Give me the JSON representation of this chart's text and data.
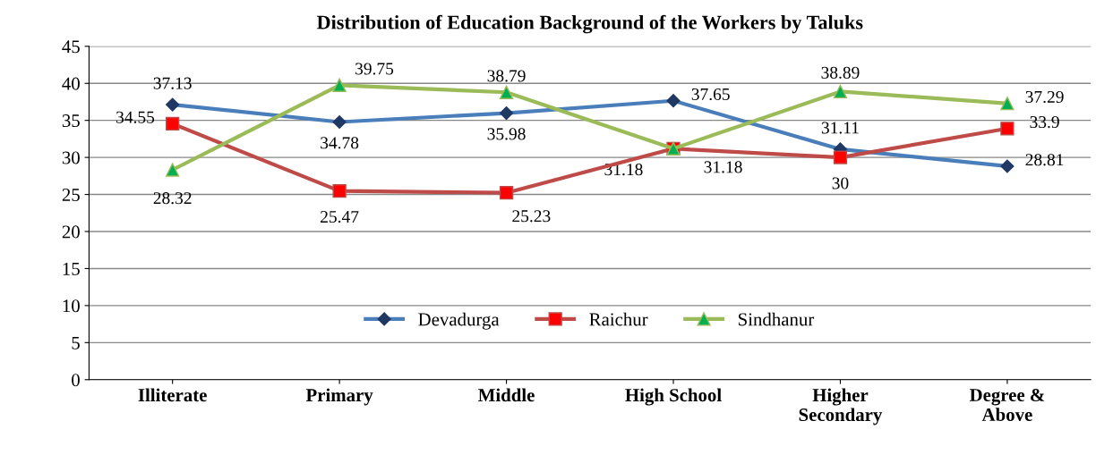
{
  "chart_data": {
    "type": "line",
    "title": "Distribution of Education Background of the Workers by Taluks",
    "categories": [
      "Illiterate",
      "Primary",
      "Middle",
      "High School",
      "Higher\nSecondary",
      "Degree &\nAbove"
    ],
    "series": [
      {
        "name": "Devadurga",
        "color": "#4a7ebb",
        "marker": "diamond",
        "values": [
          37.13,
          34.78,
          35.98,
          37.65,
          31.11,
          28.81
        ]
      },
      {
        "name": "Raichur",
        "color": "#be4b48",
        "marker": "square",
        "values": [
          34.55,
          25.47,
          25.23,
          31.18,
          30,
          33.9
        ]
      },
      {
        "name": "Sindhanur",
        "color": "#9bbb59",
        "marker": "triangle",
        "values": [
          28.32,
          39.75,
          38.79,
          31.18,
          38.89,
          37.29
        ]
      }
    ],
    "ylim": [
      0,
      45
    ],
    "yticks": [
      0,
      5,
      10,
      15,
      20,
      25,
      30,
      35,
      40,
      45
    ],
    "grid": "y",
    "legend": "bottom",
    "data_labels": true
  }
}
